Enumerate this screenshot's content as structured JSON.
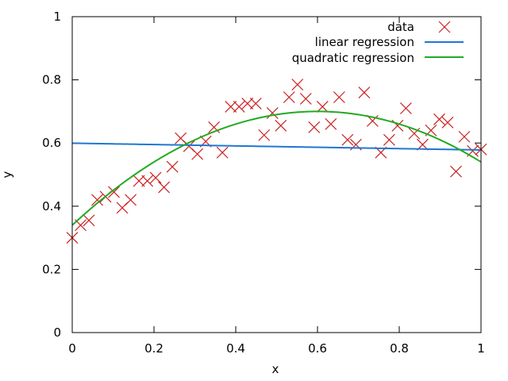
{
  "chart_data": {
    "type": "scatter",
    "title": "",
    "xlabel": "x",
    "ylabel": "y",
    "xlim": [
      0,
      1
    ],
    "ylim": [
      0,
      1
    ],
    "xticks": [
      "0",
      "0.2",
      "0.4",
      "0.6",
      "0.8",
      "1"
    ],
    "yticks": [
      "0",
      "0.2",
      "0.4",
      "0.6",
      "0.8",
      "1"
    ],
    "grid": false,
    "legend_position": "top-right",
    "series": [
      {
        "name": "data",
        "kind": "points",
        "marker": "cross",
        "color": "#cc2222",
        "x": [
          0.0,
          0.0204,
          0.0408,
          0.0612,
          0.0816,
          0.102,
          0.1224,
          0.1429,
          0.1633,
          0.1837,
          0.2041,
          0.2245,
          0.2449,
          0.2653,
          0.2857,
          0.3061,
          0.3265,
          0.3469,
          0.3673,
          0.3878,
          0.4082,
          0.4286,
          0.449,
          0.4694,
          0.4898,
          0.5102,
          0.5306,
          0.551,
          0.5714,
          0.5918,
          0.6122,
          0.6327,
          0.6531,
          0.6735,
          0.6939,
          0.7143,
          0.7347,
          0.7551,
          0.7755,
          0.7959,
          0.8163,
          0.8367,
          0.8571,
          0.8776,
          0.898,
          0.9184,
          0.9388,
          0.9592,
          0.9796,
          1.0
        ],
        "y": [
          0.3,
          0.34,
          0.355,
          0.42,
          0.43,
          0.445,
          0.395,
          0.42,
          0.48,
          0.48,
          0.49,
          0.46,
          0.525,
          0.615,
          0.59,
          0.565,
          0.605,
          0.65,
          0.57,
          0.715,
          0.715,
          0.725,
          0.725,
          0.625,
          0.695,
          0.655,
          0.745,
          0.785,
          0.74,
          0.65,
          0.715,
          0.66,
          0.745,
          0.61,
          0.595,
          0.76,
          0.67,
          0.57,
          0.61,
          0.655,
          0.71,
          0.63,
          0.595,
          0.64,
          0.675,
          0.665,
          0.51,
          0.62,
          0.575,
          0.58
        ]
      },
      {
        "name": "linear regression",
        "kind": "line",
        "color": "#1f77d4",
        "fn": "linear",
        "coef": [
          0.5995,
          -0.0215
        ]
      },
      {
        "name": "quadratic regression",
        "kind": "line",
        "color": "#22aa22",
        "fn": "quadratic",
        "coef": [
          0.34,
          1.2,
          -1.0
        ]
      }
    ]
  }
}
